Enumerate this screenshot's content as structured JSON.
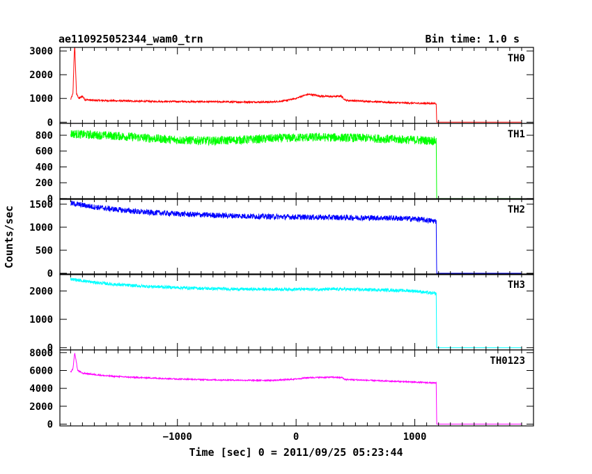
{
  "header": {
    "title": "ae110925052344_wam0_trn",
    "bin_time": "Bin time: 1.0 s"
  },
  "chart_data": {
    "type": "line",
    "xlabel": "Time [sec] 0 = 2011/09/25 05:23:44",
    "ylabel": "Counts/sec",
    "xlim": [
      -1990,
      2000
    ],
    "x_ticks": [
      -1000,
      0,
      1000
    ],
    "x_tick_labels": [
      "−1000",
      "0",
      "1000"
    ],
    "panels": [
      {
        "name": "TH0",
        "color": "#ff0000",
        "ylim": [
          -50,
          3150
        ],
        "y_ticks": [
          0,
          1000,
          2000,
          3000
        ],
        "points": [
          [
            -1900,
            950
          ],
          [
            -1880,
            1200
          ],
          [
            -1870,
            2800
          ],
          [
            -1865,
            3300
          ],
          [
            -1860,
            2500
          ],
          [
            -1850,
            1200
          ],
          [
            -1830,
            1000
          ],
          [
            -1800,
            1100
          ],
          [
            -1780,
            950
          ],
          [
            -1700,
            920
          ],
          [
            -1500,
            900
          ],
          [
            -1300,
            880
          ],
          [
            -1000,
            870
          ],
          [
            -700,
            860
          ],
          [
            -400,
            850
          ],
          [
            -200,
            850
          ],
          [
            -100,
            900
          ],
          [
            0,
            1000
          ],
          [
            50,
            1100
          ],
          [
            100,
            1170
          ],
          [
            150,
            1150
          ],
          [
            200,
            1100
          ],
          [
            300,
            1080
          ],
          [
            380,
            1100
          ],
          [
            400,
            1000
          ],
          [
            420,
            920
          ],
          [
            600,
            880
          ],
          [
            800,
            830
          ],
          [
            1000,
            800
          ],
          [
            1180,
            790
          ],
          [
            1185,
            0
          ],
          [
            1900,
            0
          ]
        ],
        "noise": 35
      },
      {
        "name": "TH1",
        "color": "#00ff00",
        "ylim": [
          -10,
          950
        ],
        "y_ticks": [
          0,
          200,
          400,
          600,
          800
        ],
        "points": [
          [
            -1900,
            820
          ],
          [
            -1800,
            810
          ],
          [
            -1500,
            790
          ],
          [
            -1200,
            760
          ],
          [
            -1000,
            740
          ],
          [
            -700,
            730
          ],
          [
            -400,
            745
          ],
          [
            -200,
            760
          ],
          [
            0,
            770
          ],
          [
            200,
            775
          ],
          [
            400,
            770
          ],
          [
            600,
            765
          ],
          [
            800,
            750
          ],
          [
            1000,
            740
          ],
          [
            1180,
            730
          ],
          [
            1185,
            0
          ],
          [
            1900,
            0
          ]
        ],
        "noise": 55
      },
      {
        "name": "TH2",
        "color": "#0000ff",
        "ylim": [
          -30,
          1620
        ],
        "y_ticks": [
          0,
          500,
          1000,
          1500
        ],
        "points": [
          [
            -1900,
            1520
          ],
          [
            -1700,
            1440
          ],
          [
            -1500,
            1380
          ],
          [
            -1300,
            1330
          ],
          [
            -1000,
            1290
          ],
          [
            -700,
            1260
          ],
          [
            -400,
            1240
          ],
          [
            0,
            1220
          ],
          [
            400,
            1210
          ],
          [
            800,
            1200
          ],
          [
            1000,
            1180
          ],
          [
            1180,
            1130
          ],
          [
            1185,
            0
          ],
          [
            1900,
            0
          ]
        ],
        "noise": 60
      },
      {
        "name": "TH3",
        "color": "#00ffff",
        "ylim": [
          -80,
          2600
        ],
        "y_ticks": [
          0,
          1000,
          2000
        ],
        "points": [
          [
            -1900,
            2420
          ],
          [
            -1700,
            2300
          ],
          [
            -1500,
            2220
          ],
          [
            -1300,
            2170
          ],
          [
            -1000,
            2120
          ],
          [
            -700,
            2080
          ],
          [
            -400,
            2060
          ],
          [
            0,
            2060
          ],
          [
            400,
            2060
          ],
          [
            800,
            2030
          ],
          [
            1000,
            2000
          ],
          [
            1180,
            1900
          ],
          [
            1185,
            0
          ],
          [
            1900,
            0
          ]
        ],
        "noise": 55
      },
      {
        "name": "TH0123",
        "color": "#ff00ff",
        "ylim": [
          -200,
          8300
        ],
        "y_ticks": [
          0,
          2000,
          4000,
          6000,
          8000
        ],
        "points": [
          [
            -1900,
            5800
          ],
          [
            -1880,
            6200
          ],
          [
            -1865,
            8000
          ],
          [
            -1855,
            7200
          ],
          [
            -1840,
            6000
          ],
          [
            -1800,
            5700
          ],
          [
            -1600,
            5400
          ],
          [
            -1400,
            5250
          ],
          [
            -1000,
            5050
          ],
          [
            -700,
            4950
          ],
          [
            -400,
            4900
          ],
          [
            -200,
            4900
          ],
          [
            -100,
            4950
          ],
          [
            0,
            5050
          ],
          [
            100,
            5200
          ],
          [
            300,
            5250
          ],
          [
            390,
            5200
          ],
          [
            410,
            5000
          ],
          [
            600,
            4900
          ],
          [
            800,
            4800
          ],
          [
            1000,
            4700
          ],
          [
            1180,
            4600
          ],
          [
            1185,
            0
          ],
          [
            1900,
            0
          ]
        ],
        "noise": 70
      }
    ]
  }
}
